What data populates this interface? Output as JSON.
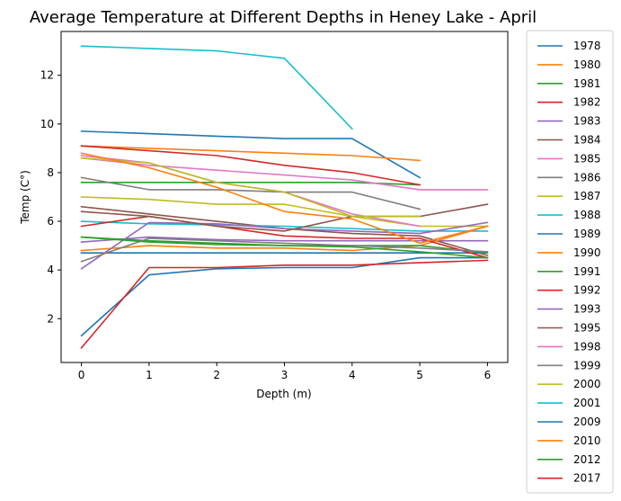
{
  "chart_data": {
    "type": "line",
    "title": "Average Temperature at Different Depths in Heney Lake - April",
    "xlabel": "Depth (m)",
    "ylabel": "Temp (C°)",
    "xlim": [
      -0.3,
      6.3
    ],
    "ylim": [
      0.2,
      13.8
    ],
    "xticks": [
      0,
      1,
      2,
      3,
      4,
      5,
      6
    ],
    "yticks": [
      2,
      4,
      6,
      8,
      10,
      12
    ],
    "grid": false,
    "legend_placement": "outside-right",
    "series": [
      {
        "name": "1978",
        "color": "#1f77b4",
        "x": [
          0,
          1,
          2,
          3,
          4,
          5
        ],
        "values": [
          9.7,
          9.6,
          9.5,
          9.4,
          9.4,
          7.8
        ]
      },
      {
        "name": "1980",
        "color": "#ff7f0e",
        "x": [
          0,
          1,
          2,
          3,
          4,
          5
        ],
        "values": [
          9.1,
          9.0,
          8.9,
          8.8,
          8.7,
          8.5
        ]
      },
      {
        "name": "1981",
        "color": "#2ca02c",
        "x": [
          0,
          1,
          2,
          3,
          4,
          5
        ],
        "values": [
          7.6,
          7.6,
          7.6,
          7.6,
          7.6,
          7.5
        ]
      },
      {
        "name": "1982",
        "color": "#d62728",
        "x": [
          0,
          1,
          2,
          3,
          4,
          5
        ],
        "values": [
          9.1,
          8.9,
          8.7,
          8.3,
          8.0,
          7.5
        ]
      },
      {
        "name": "1983",
        "color": "#9467bd",
        "x": [
          0,
          1,
          2,
          3,
          4,
          5,
          6
        ],
        "values": [
          5.15,
          5.35,
          5.25,
          5.2,
          5.2,
          5.2,
          5.2
        ]
      },
      {
        "name": "1984",
        "color": "#8c564b",
        "x": [
          0,
          1,
          2,
          3,
          4,
          5,
          6
        ],
        "values": [
          6.6,
          6.3,
          6.0,
          5.7,
          5.5,
          5.4,
          4.6
        ]
      },
      {
        "name": "1985",
        "color": "#e377c2",
        "x": [
          0,
          1,
          2,
          3,
          4,
          5,
          6
        ],
        "values": [
          8.6,
          8.3,
          8.1,
          7.9,
          7.7,
          7.3,
          7.3
        ]
      },
      {
        "name": "1986",
        "color": "#7f7f7f",
        "x": [
          0,
          1,
          2,
          3,
          4,
          5
        ],
        "values": [
          7.8,
          7.3,
          7.3,
          7.2,
          7.2,
          6.5
        ]
      },
      {
        "name": "1987",
        "color": "#bcbd22",
        "x": [
          0,
          1,
          2,
          3,
          4,
          5,
          6
        ],
        "values": [
          7.0,
          6.9,
          6.7,
          6.7,
          6.2,
          5.8,
          5.8
        ]
      },
      {
        "name": "1988",
        "color": "#17becf",
        "x": [
          0,
          1,
          2,
          3,
          4,
          5,
          6
        ],
        "values": [
          6.0,
          5.9,
          5.85,
          5.8,
          5.7,
          5.6,
          5.6
        ]
      },
      {
        "name": "1989",
        "color": "#1f77b4",
        "x": [
          0,
          1,
          2,
          3,
          4,
          5,
          6
        ],
        "values": [
          4.7,
          4.7,
          4.7,
          4.7,
          4.7,
          4.7,
          4.7
        ]
      },
      {
        "name": "1990",
        "color": "#ff7f0e",
        "x": [
          0,
          1,
          2,
          3,
          4,
          5,
          6
        ],
        "values": [
          4.8,
          5.0,
          4.9,
          4.9,
          4.8,
          5.0,
          5.8
        ]
      },
      {
        "name": "1991",
        "color": "#2ca02c",
        "x": [
          0,
          1,
          2,
          3,
          4,
          5,
          6
        ],
        "values": [
          5.35,
          5.2,
          5.1,
          5.0,
          5.0,
          5.0,
          4.7
        ]
      },
      {
        "name": "1992",
        "color": "#d62728",
        "x": [
          0,
          1,
          2,
          3,
          4,
          5,
          6
        ],
        "values": [
          5.8,
          6.2,
          5.8,
          5.4,
          5.3,
          5.3,
          4.5
        ]
      },
      {
        "name": "1993",
        "color": "#9467bd",
        "x": [
          0,
          1,
          2,
          3,
          4,
          5,
          6
        ],
        "values": [
          4.05,
          5.95,
          5.9,
          5.7,
          5.6,
          5.5,
          5.95
        ]
      },
      {
        "name": "1995",
        "color": "#8c564b",
        "x": [
          0,
          1,
          2,
          3,
          4,
          5,
          6
        ],
        "values": [
          6.4,
          6.2,
          5.8,
          5.6,
          6.2,
          6.2,
          6.7
        ]
      },
      {
        "name": "1998",
        "color": "#e377c2",
        "x": [
          0,
          1,
          2,
          3,
          4,
          5
        ],
        "values": [
          8.7,
          8.4,
          7.6,
          7.2,
          6.3,
          5.8
        ]
      },
      {
        "name": "1999",
        "color": "#7f7f7f",
        "x": [
          0,
          1,
          2,
          3,
          4,
          5,
          6
        ],
        "values": [
          4.35,
          5.3,
          5.2,
          5.1,
          5.0,
          4.9,
          4.75
        ]
      },
      {
        "name": "2000",
        "color": "#bcbd22",
        "x": [
          0,
          1,
          2,
          3,
          4,
          5
        ],
        "values": [
          8.6,
          8.4,
          7.6,
          7.2,
          6.2,
          6.2
        ]
      },
      {
        "name": "2001",
        "color": "#17becf",
        "x": [
          0,
          1,
          2,
          3,
          4
        ],
        "values": [
          13.2,
          13.1,
          13.0,
          12.7,
          9.8
        ]
      },
      {
        "name": "2009",
        "color": "#1f77b4",
        "x": [
          0,
          1,
          2,
          3,
          4,
          5,
          6
        ],
        "values": [
          1.3,
          3.8,
          4.05,
          4.1,
          4.1,
          4.5,
          4.5
        ]
      },
      {
        "name": "2010",
        "color": "#ff7f0e",
        "x": [
          0,
          1,
          2,
          3,
          4,
          5,
          6
        ],
        "values": [
          8.8,
          8.2,
          7.4,
          6.4,
          6.1,
          5.1,
          5.8
        ]
      },
      {
        "name": "2012",
        "color": "#2ca02c",
        "x": [
          0,
          1,
          2,
          3,
          4,
          5,
          6
        ],
        "values": [
          5.35,
          5.15,
          5.05,
          5.0,
          4.95,
          4.75,
          4.5
        ]
      },
      {
        "name": "2017",
        "color": "#d62728",
        "x": [
          0,
          1,
          2,
          3,
          4,
          5,
          6
        ],
        "values": [
          0.8,
          4.1,
          4.1,
          4.2,
          4.2,
          4.3,
          4.4
        ]
      }
    ]
  }
}
